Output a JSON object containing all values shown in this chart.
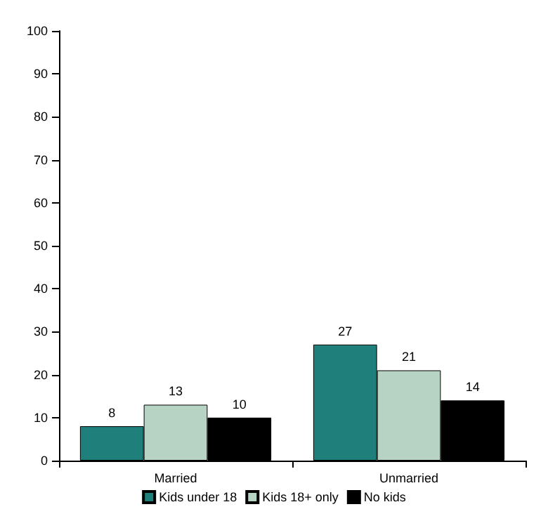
{
  "chart_data": {
    "type": "bar",
    "categories": [
      "Married",
      "Unmarried"
    ],
    "series": [
      {
        "name": "Kids under 18",
        "color": "#1f7f7a",
        "values": [
          8,
          27
        ]
      },
      {
        "name": "Kids 18+ only",
        "color": "#b6d3c3",
        "values": [
          13,
          21
        ]
      },
      {
        "name": "No kids",
        "color": "#000000",
        "values": [
          10,
          14
        ]
      }
    ],
    "ylim": [
      0,
      100
    ],
    "yticks": [
      0,
      10,
      20,
      30,
      40,
      50,
      60,
      70,
      80,
      90,
      100
    ],
    "grid": false,
    "legend": "bottom",
    "data_labels": true
  }
}
